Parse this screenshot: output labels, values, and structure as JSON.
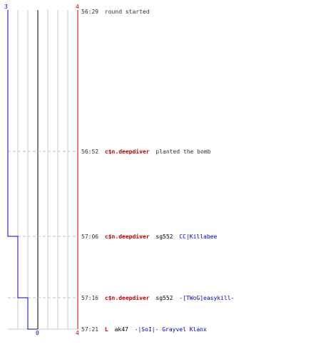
{
  "scores": {
    "left_start": "3",
    "right_start": "4",
    "left_end": "0",
    "right_end": "4"
  },
  "colors": {
    "team_blue": "#0000cc",
    "team_red": "#cc0000",
    "grid": "#c8c8c8",
    "dash": "#c0c0c0",
    "text": "#333333",
    "weapon": "#000000"
  },
  "events": [
    {
      "time": "56:29",
      "parts": [
        {
          "text": "round started",
          "style": "info"
        }
      ]
    },
    {
      "time": "56:52",
      "parts": [
        {
          "text": "c$n.deepdiver",
          "style": "red"
        },
        {
          "text": "planted the bomb",
          "style": "info"
        }
      ]
    },
    {
      "time": "57:06",
      "parts": [
        {
          "text": "c$n.deepdiver",
          "style": "red"
        },
        {
          "text": "sg552",
          "style": "weapon"
        },
        {
          "text": "CC|Killabee",
          "style": "blue"
        }
      ]
    },
    {
      "time": "57:16",
      "parts": [
        {
          "text": "c$n.deepdiver",
          "style": "red"
        },
        {
          "text": "sg552",
          "style": "weapon"
        },
        {
          "text": "-[TWoG]easykill-",
          "style": "blue"
        }
      ]
    },
    {
      "time": "57:21",
      "parts": [
        {
          "text": "L",
          "style": "red"
        },
        {
          "text": "ak47",
          "style": "weapon"
        },
        {
          "text": "-|SoI|- Grayvel Klanx",
          "style": "blue"
        }
      ]
    }
  ]
}
